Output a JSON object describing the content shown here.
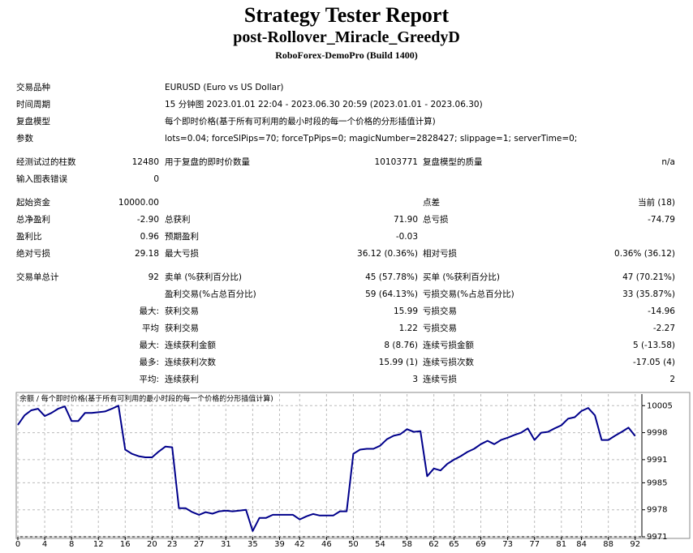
{
  "header": {
    "title": "Strategy Tester Report",
    "subtitle": "post-Rollover_Miracle_GreedyD",
    "server": "RoboForex-DemoPro (Build 1400)"
  },
  "sections": [
    [
      {
        "label1": "交易品种",
        "text": "EURUSD (Euro vs US Dollar)"
      },
      {
        "label1": "时间周期",
        "text": "15 分钟图 2023.01.01 22:04 - 2023.06.30 20:59 (2023.01.01 - 2023.06.30)"
      },
      {
        "label1": "复盘模型",
        "text": "每个即时价格(基于所有可利用的最小时段的每一个价格的分形插值计算)"
      },
      {
        "label1": "参数",
        "text": "lots=0.04; forceSlPips=70; forceTpPips=0; magicNumber=2828427; slippage=1; serverTime=0;"
      }
    ],
    [
      {
        "label1": "经测试过的柱数",
        "value1": "12480",
        "label2": "用于复盘的即时价数量",
        "value2": "10103771",
        "label3": "复盘模型的质量",
        "value3": "n/a"
      },
      {
        "label1": "输入图表错误",
        "value1": "0"
      }
    ],
    [
      {
        "label1": "起始资金",
        "value1": "10000.00",
        "label3": "点差",
        "value3": "当前 (18)"
      },
      {
        "label1": "总净盈利",
        "value1": "-2.90",
        "label2": "总获利",
        "value2": "71.90",
        "label3": "总亏损",
        "value3": "-74.79"
      },
      {
        "label1": "盈利比",
        "value1": "0.96",
        "label2": "预期盈利",
        "value2": "-0.03"
      },
      {
        "label1": "绝对亏损",
        "value1": "29.18",
        "label2": "最大亏损",
        "value2": "36.12 (0.36%)",
        "label3": "相对亏损",
        "value3": "0.36% (36.12)"
      }
    ],
    [
      {
        "label1": "交易单总计",
        "value1": "92",
        "label2": "卖单 (%获利百分比)",
        "value2": "45 (57.78%)",
        "label3": "买单 (%获利百分比)",
        "value3": "47 (70.21%)"
      },
      {
        "label2": "盈利交易(%占总百分比)",
        "value2": "59 (64.13%)",
        "label3": "亏损交易(%占总百分比)",
        "value3": "33 (35.87%)"
      },
      {
        "value1": "最大:",
        "label2": "获利交易",
        "value2": "15.99",
        "label3": "亏损交易",
        "value3": "-14.96"
      },
      {
        "value1": "平均",
        "label2": "获利交易",
        "value2": "1.22",
        "label3": "亏损交易",
        "value3": "-2.27"
      },
      {
        "value1": "最大:",
        "label2": "连续获利金额",
        "value2": "8 (8.76)",
        "label3": "连续亏损金额",
        "value3": "5 (-13.58)"
      },
      {
        "value1": "最多:",
        "label2": "连续获利次数",
        "value2": "15.99 (1)",
        "label3": "连续亏损次数",
        "value3": "-17.05 (4)"
      },
      {
        "value1": "平均:",
        "label2": "连续获利",
        "value2": "3",
        "label3": "连续亏损",
        "value3": "2"
      }
    ]
  ],
  "chart_data": {
    "type": "line",
    "title": "余额 / 每个即时价格(基于所有可利用的最小时段的每一个价格的分形插值计算)",
    "color": "#00008b",
    "grid": true,
    "xlim": [
      0,
      93
    ],
    "xticks": [
      0,
      4,
      8,
      12,
      16,
      20,
      23,
      27,
      31,
      35,
      39,
      42,
      46,
      50,
      54,
      58,
      62,
      65,
      69,
      73,
      77,
      81,
      84,
      88,
      92
    ],
    "ylim": [
      9971,
      10008
    ],
    "yticks": [
      10005,
      9998,
      9991,
      9985,
      9978,
      9971
    ],
    "values": [
      10000,
      10002.5,
      10003.8,
      10004.2,
      10002.3,
      10003.1,
      10004.2,
      10004.8,
      10001,
      10001,
      10003.1,
      10003.1,
      10003.3,
      10003.5,
      10004.2,
      10005,
      9993.6,
      9992.5,
      9991.9,
      9991.6,
      9991.6,
      9993.1,
      9994.4,
      9994.2,
      9978.4,
      9978.4,
      9977.4,
      9976.7,
      9977.4,
      9977,
      9977.6,
      9977.8,
      9977.6,
      9977.8,
      9978,
      9972.5,
      9975.9,
      9975.9,
      9976.7,
      9976.7,
      9976.7,
      9976.7,
      9975.5,
      9976.3,
      9976.9,
      9976.5,
      9976.5,
      9976.5,
      9977.6,
      9977.6,
      9992.5,
      9993.6,
      9993.8,
      9993.8,
      9994.6,
      9996.3,
      9997.2,
      9997.6,
      9998.9,
      9998.2,
      9998.4,
      9986.7,
      9988.7,
      9988.2,
      9989.9,
      9991,
      9991.9,
      9993,
      9993.8,
      9995,
      9995.9,
      9995,
      9996.1,
      9996.7,
      9997.4,
      9998,
      9999.1,
      9996.1,
      9998,
      9998.2,
      9999.1,
      9999.9,
      10001.6,
      10002,
      10003.6,
      10004.4,
      10002.5,
      9996.1,
      9996.1,
      9997.2,
      9998.2,
      9999.3,
      9997.1
    ]
  }
}
